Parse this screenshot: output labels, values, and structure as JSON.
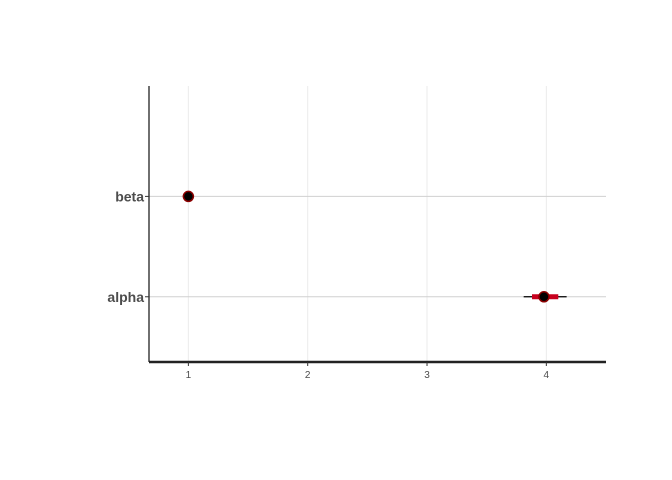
{
  "chart_data": {
    "type": "interval-plot",
    "title": "",
    "xlabel": "",
    "ylabel": "",
    "xlim": [
      0.67,
      4.5
    ],
    "x_ticks": [
      1,
      2,
      3,
      4
    ],
    "x_tick_labels": [
      "1",
      "2",
      "3",
      "4"
    ],
    "categories": [
      "beta",
      "alpha"
    ],
    "points": [
      {
        "label": "beta",
        "median": 1.0,
        "inner": [
          1.0,
          1.0
        ],
        "outer": [
          1.0,
          1.0
        ]
      },
      {
        "label": "alpha",
        "median": 3.98,
        "inner": [
          3.88,
          4.1
        ],
        "outer": [
          3.81,
          4.17
        ]
      }
    ],
    "grid": true,
    "colors": {
      "point": "#000000",
      "point_outline": "#8b0000",
      "inner_interval": "#c8001e",
      "outer_interval": "#000000",
      "grid": "#d0d0d0",
      "axis": "#222222"
    }
  }
}
